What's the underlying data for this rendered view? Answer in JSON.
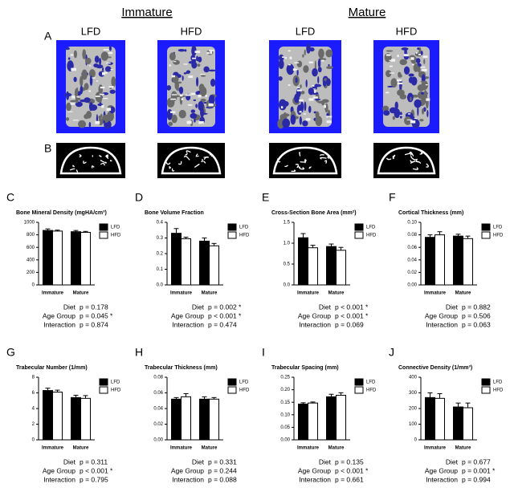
{
  "headers": [
    "Immature",
    "Mature"
  ],
  "panel_a": {
    "label": "A",
    "images": [
      "LFD",
      "HFD",
      "LFD",
      "HFD"
    ]
  },
  "panel_b": {
    "label": "B"
  },
  "chart_data": [
    {
      "type": "bar",
      "panel": "C",
      "title": "Bone Mineral Density (mgHA/cm³)",
      "categories": [
        "Immature",
        "Mature"
      ],
      "ylim": [
        0,
        1000
      ],
      "yticks": [
        0,
        200,
        400,
        600,
        800,
        1000
      ],
      "series": [
        {
          "name": "LFD",
          "color": "#000000",
          "values": [
            870,
            850
          ],
          "errors": [
            25,
            20
          ]
        },
        {
          "name": "HFD",
          "color": "#ffffff",
          "values": [
            860,
            840
          ],
          "errors": [
            15,
            15
          ]
        }
      ],
      "stats": [
        {
          "label": "Diet",
          "text": "p = 0.178"
        },
        {
          "label": "Age Group",
          "text": "p = 0.045 *"
        },
        {
          "label": "Interaction",
          "text": "p = 0.874"
        }
      ]
    },
    {
      "type": "bar",
      "panel": "D",
      "title": "Bone Volume Fraction",
      "categories": [
        "Immature",
        "Mature"
      ],
      "ylim": [
        0,
        0.4
      ],
      "yticks": [
        {
          "value": 0,
          "label": "0.0"
        },
        0.1,
        0.2,
        0.3,
        0.4
      ],
      "series": [
        {
          "name": "LFD",
          "color": "#000000",
          "values": [
            0.33,
            0.28
          ],
          "errors": [
            0.03,
            0.02
          ]
        },
        {
          "name": "HFD",
          "color": "#ffffff",
          "values": [
            0.295,
            0.25
          ],
          "errors": [
            0.01,
            0.015
          ]
        }
      ],
      "stats": [
        {
          "label": "Diet",
          "text": "p = 0.002 *"
        },
        {
          "label": "Age Group",
          "text": "p < 0.001 *"
        },
        {
          "label": "Interaction",
          "text": "p = 0.474"
        }
      ]
    },
    {
      "type": "bar",
      "panel": "E",
      "title": "Cross-Section Bone Area (mm²)",
      "categories": [
        "Immature",
        "Mature"
      ],
      "ylim": [
        0,
        1.5
      ],
      "yticks": [
        {
          "value": 0,
          "label": "0.0"
        },
        0.5,
        {
          "value": 1,
          "label": "1.0"
        },
        1.5
      ],
      "series": [
        {
          "name": "LFD",
          "color": "#000000",
          "values": [
            1.13,
            0.92
          ],
          "errors": [
            0.1,
            0.06
          ]
        },
        {
          "name": "HFD",
          "color": "#ffffff",
          "values": [
            0.89,
            0.83
          ],
          "errors": [
            0.06,
            0.07
          ]
        }
      ],
      "stats": [
        {
          "label": "Diet",
          "text": "p < 0.001 *"
        },
        {
          "label": "Age Group",
          "text": "p < 0.001 *"
        },
        {
          "label": "Interaction",
          "text": "p = 0.069"
        }
      ]
    },
    {
      "type": "bar",
      "panel": "F",
      "title": "Cortical Thickness (mm)",
      "categories": [
        "Immature",
        "Mature"
      ],
      "ylim": [
        0,
        0.1
      ],
      "yticks": [
        {
          "value": 0,
          "label": "0.00"
        },
        0.02,
        0.04,
        0.06,
        0.08,
        {
          "value": 0.1,
          "label": "0.10"
        }
      ],
      "series": [
        {
          "name": "LFD",
          "color": "#000000",
          "values": [
            0.076,
            0.078
          ],
          "errors": [
            0.004,
            0.003
          ]
        },
        {
          "name": "HFD",
          "color": "#ffffff",
          "values": [
            0.08,
            0.074
          ],
          "errors": [
            0.005,
            0.004
          ]
        }
      ],
      "stats": [
        {
          "label": "Diet",
          "text": "p = 0.882"
        },
        {
          "label": "Age Group",
          "text": "p = 0.506"
        },
        {
          "label": "Interaction",
          "text": "p = 0.063"
        }
      ]
    },
    {
      "type": "bar",
      "panel": "G",
      "title": "Trabecular Number (1/mm)",
      "categories": [
        "Immature",
        "Mature"
      ],
      "ylim": [
        0,
        8
      ],
      "yticks": [
        0,
        2,
        4,
        6,
        8
      ],
      "series": [
        {
          "name": "LFD",
          "color": "#000000",
          "values": [
            6.3,
            5.4
          ],
          "errors": [
            0.3,
            0.3
          ]
        },
        {
          "name": "HFD",
          "color": "#ffffff",
          "values": [
            6.1,
            5.3
          ],
          "errors": [
            0.25,
            0.35
          ]
        }
      ],
      "stats": [
        {
          "label": "Diet",
          "text": "p = 0.311"
        },
        {
          "label": "Age Group",
          "text": "p < 0.001 *"
        },
        {
          "label": "Interaction",
          "text": "p = 0.795"
        }
      ]
    },
    {
      "type": "bar",
      "panel": "H",
      "title": "Trabecular Thickness (mm)",
      "categories": [
        "Immature",
        "Mature"
      ],
      "ylim": [
        0,
        0.08
      ],
      "yticks": [
        {
          "value": 0,
          "label": "0.00"
        },
        0.02,
        0.04,
        0.06,
        0.08
      ],
      "series": [
        {
          "name": "LFD",
          "color": "#000000",
          "values": [
            0.052,
            0.052
          ],
          "errors": [
            0.002,
            0.003
          ]
        },
        {
          "name": "HFD",
          "color": "#ffffff",
          "values": [
            0.055,
            0.052
          ],
          "errors": [
            0.004,
            0.002
          ]
        }
      ],
      "stats": [
        {
          "label": "Diet",
          "text": "p = 0.331"
        },
        {
          "label": "Age Group",
          "text": "p = 0.244"
        },
        {
          "label": "Interaction",
          "text": "p = 0.088"
        }
      ]
    },
    {
      "type": "bar",
      "panel": "I",
      "title": "Trabecular Spacing (mm)",
      "categories": [
        "Immature",
        "Mature"
      ],
      "ylim": [
        0,
        0.25
      ],
      "yticks": [
        {
          "value": 0,
          "label": "0.00"
        },
        0.05,
        {
          "value": 0.1,
          "label": "0.10"
        },
        0.15,
        {
          "value": 0.2,
          "label": "0.20"
        },
        0.25
      ],
      "series": [
        {
          "name": "LFD",
          "color": "#000000",
          "values": [
            0.143,
            0.172
          ],
          "errors": [
            0.005,
            0.01
          ]
        },
        {
          "name": "HFD",
          "color": "#ffffff",
          "values": [
            0.147,
            0.178
          ],
          "errors": [
            0.004,
            0.01
          ]
        }
      ],
      "stats": [
        {
          "label": "Diet",
          "text": "p = 0.135"
        },
        {
          "label": "Age Group",
          "text": "p < 0.001 *"
        },
        {
          "label": "Interaction",
          "text": "p = 0.661"
        }
      ]
    },
    {
      "type": "bar",
      "panel": "J",
      "title": "Connective Density (1/mm³)",
      "categories": [
        "Immature",
        "Mature"
      ],
      "ylim": [
        0,
        400
      ],
      "yticks": [
        0,
        100,
        200,
        300,
        400
      ],
      "series": [
        {
          "name": "LFD",
          "color": "#000000",
          "values": [
            270,
            210
          ],
          "errors": [
            30,
            25
          ]
        },
        {
          "name": "HFD",
          "color": "#ffffff",
          "values": [
            265,
            205
          ],
          "errors": [
            30,
            30
          ]
        }
      ],
      "stats": [
        {
          "label": "Diet",
          "text": "p = 0.677"
        },
        {
          "label": "Age Group",
          "text": "p = 0.001 *"
        },
        {
          "label": "Interaction",
          "text": "p = 0.994"
        }
      ]
    }
  ]
}
